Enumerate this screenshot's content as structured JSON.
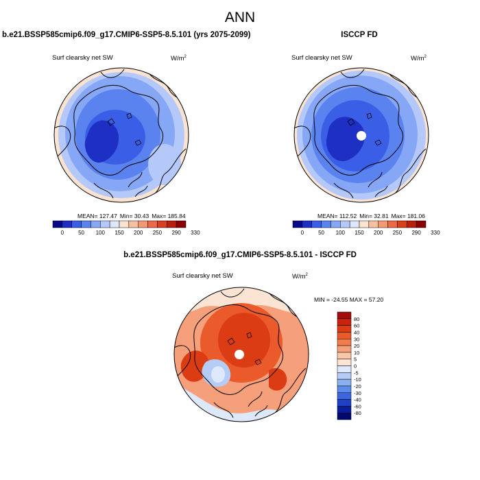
{
  "main_title": "ANN",
  "panels": [
    {
      "title": "b.e21.BSSP585cmip6.f09_g17.CMIP6-SSP5-8.5.101 (yrs 2075-2099)",
      "variable": "Surf clearsky net SW",
      "units": "W/m",
      "units_exp": "2",
      "stats": {
        "mean": "MEAN= 127.47",
        "min": "Min=  30.43",
        "max": "Max= 185.84"
      }
    },
    {
      "title": "ISCCP FD",
      "variable": "Surf clearsky net SW",
      "units": "W/m",
      "units_exp": "2",
      "stats": {
        "mean": "MEAN= 112.52",
        "min": "Min=  32.81",
        "max": "Max= 181.06"
      }
    },
    {
      "title": "b.e21.BSSP585cmip6.f09_g17.CMIP6-SSP5-8.5.101 - ISCCP FD",
      "variable": "Surf clearsky net SW",
      "units": "W/m",
      "units_exp": "2",
      "stats": {
        "minmax": "MIN = -24.55 MAX =  57.20"
      }
    }
  ],
  "colorbar_abs": {
    "labels": [
      "0",
      "50",
      "100",
      "150",
      "200",
      "250",
      "290",
      "330"
    ],
    "colors": [
      "#08088a",
      "#1e2fc4",
      "#3a5fe6",
      "#5b83f0",
      "#86a7f6",
      "#b4c8fa",
      "#dfe7fb",
      "#fbe3d2",
      "#f7c1a1",
      "#f49a72",
      "#ec6a45",
      "#d8401e",
      "#b8200c",
      "#8a0000"
    ]
  },
  "colorbar_diff": {
    "labels": [
      "80",
      "60",
      "40",
      "30",
      "20",
      "10",
      "5",
      "0",
      "-5",
      "-10",
      "-20",
      "-30",
      "-40",
      "-60",
      "-80"
    ],
    "colors": [
      "#a10c0c",
      "#c8230e",
      "#dc3c14",
      "#ea5a2a",
      "#f27c4c",
      "#f5a07a",
      "#f8c6a8",
      "#fbe4d4",
      "#dde8fb",
      "#b5cdf6",
      "#8ab0f0",
      "#5c8cea",
      "#3a66df",
      "#1f3fc4",
      "#0a1d9a",
      "#03086e"
    ]
  }
}
